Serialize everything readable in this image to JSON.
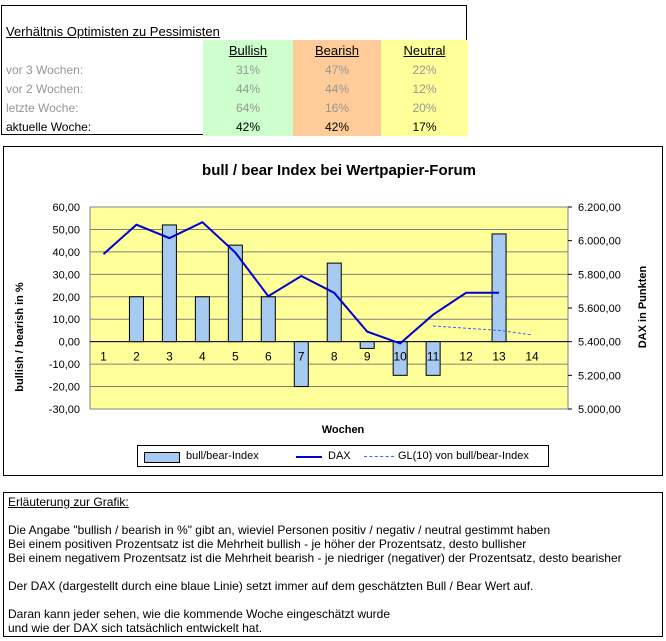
{
  "summary": {
    "title": "Verhältnis Optimisten zu Pessimisten",
    "headers": {
      "bullish": "Bullish",
      "bearish": "Bearish",
      "neutral": "Neutral"
    },
    "rows": [
      {
        "label": "vor 3 Wochen:",
        "bullish": "31%",
        "bearish": "47%",
        "neutral": "22%"
      },
      {
        "label": "vor 2 Wochen:",
        "bullish": "44%",
        "bearish": "44%",
        "neutral": "12%"
      },
      {
        "label": "letzte Woche:",
        "bullish": "64%",
        "bearish": "16%",
        "neutral": "20%"
      },
      {
        "label": "aktuelle Woche:",
        "bullish": "42%",
        "bearish": "42%",
        "neutral": "17%"
      }
    ],
    "colors": {
      "bullish": "#ccffcc",
      "bearish": "#ffcc99",
      "neutral": "#ffff99"
    }
  },
  "chart_data": {
    "type": "bar",
    "title": "bull / bear Index bei Wertpapier-Forum",
    "xlabel": "Wochen",
    "ylabel": "bullish / bearish in %",
    "y2label": "DAX in Punkten",
    "categories": [
      "1",
      "2",
      "3",
      "4",
      "5",
      "6",
      "7",
      "8",
      "9",
      "10",
      "11",
      "12",
      "13",
      "14"
    ],
    "ylim": [
      -30,
      60
    ],
    "y2lim": [
      5000,
      6200
    ],
    "yticks": [
      "60,00",
      "50,00",
      "40,00",
      "30,00",
      "20,00",
      "10,00",
      "0,00",
      "-10,00",
      "-20,00",
      "-30,00"
    ],
    "y2ticks": [
      "6.200,00",
      "6.000,00",
      "5.800,00",
      "5.600,00",
      "5.400,00",
      "5.200,00",
      "5.000,00"
    ],
    "series": [
      {
        "name": "bull/bear-Index",
        "kind": "bar",
        "axis": "left",
        "color": "#a6caf0",
        "values": [
          null,
          20,
          52,
          20,
          43,
          20,
          -20,
          35,
          -3,
          -15,
          -15,
          null,
          48,
          null
        ]
      },
      {
        "name": "DAX",
        "kind": "line",
        "axis": "right",
        "color": "#0000cc",
        "values": [
          5920,
          6095,
          6015,
          6110,
          5930,
          5670,
          5790,
          5690,
          5460,
          5390,
          5560,
          5690,
          5690,
          null
        ]
      },
      {
        "name": "GL(10) von bull/bear-Index",
        "kind": "dashed",
        "axis": "left",
        "color": "#3366ff",
        "values": [
          null,
          null,
          null,
          null,
          null,
          null,
          null,
          null,
          null,
          null,
          7,
          6,
          5,
          3
        ]
      }
    ],
    "background": "#ffff99",
    "grid": true,
    "legend": "bottom"
  },
  "notes": {
    "heading": "Erläuterung zur Grafik:",
    "lines": [
      "Die Angabe \"bullish / bearish in %\" gibt an, wieviel Personen positiv / negativ / neutral gestimmt haben",
      "Bei einem positiven Prozentsatz ist die Mehrheit bullish - je höher der Prozentsatz, desto bullisher",
      "Bei einem negativem Prozentsatz ist die Mehrheit bearish - je niedriger (negativer) der Prozentsatz, desto bearisher",
      "Der DAX (dargestellt durch eine blaue Linie) setzt immer auf dem geschätzten Bull / Bear Wert auf.",
      "Daran kann jeder sehen, wie die kommende Woche eingeschätzt wurde",
      "und wie der DAX sich tatsächlich entwickelt hat."
    ]
  }
}
